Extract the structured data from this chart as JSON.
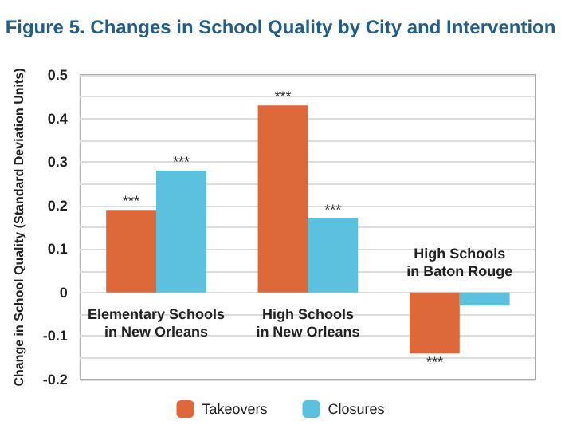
{
  "chart_data": {
    "type": "bar",
    "title": "Figure 5. Changes in School Quality by City and Intervention",
    "ylabel": "Change in School Quality (Standard Deviation Units)",
    "categories": [
      "Elementary Schools\nin New Orleans",
      "High Schools\nin New Orleans",
      "High Schools\nin Baton Rouge"
    ],
    "series": [
      {
        "name": "Takeovers",
        "color": "#dd693a",
        "values": [
          0.19,
          0.43,
          -0.14
        ],
        "value_labels": [
          "***",
          "***",
          "***"
        ]
      },
      {
        "name": "Closures",
        "color": "#5bc1de",
        "values": [
          0.28,
          0.17,
          -0.03
        ],
        "value_labels": [
          "***",
          "***",
          null
        ]
      }
    ],
    "ylim": [
      -0.2,
      0.5
    ],
    "yticks": [
      -0.2,
      -0.1,
      0,
      0.1,
      0.2,
      0.3,
      0.4,
      0.5
    ],
    "grid": true,
    "legend": "bottom"
  }
}
